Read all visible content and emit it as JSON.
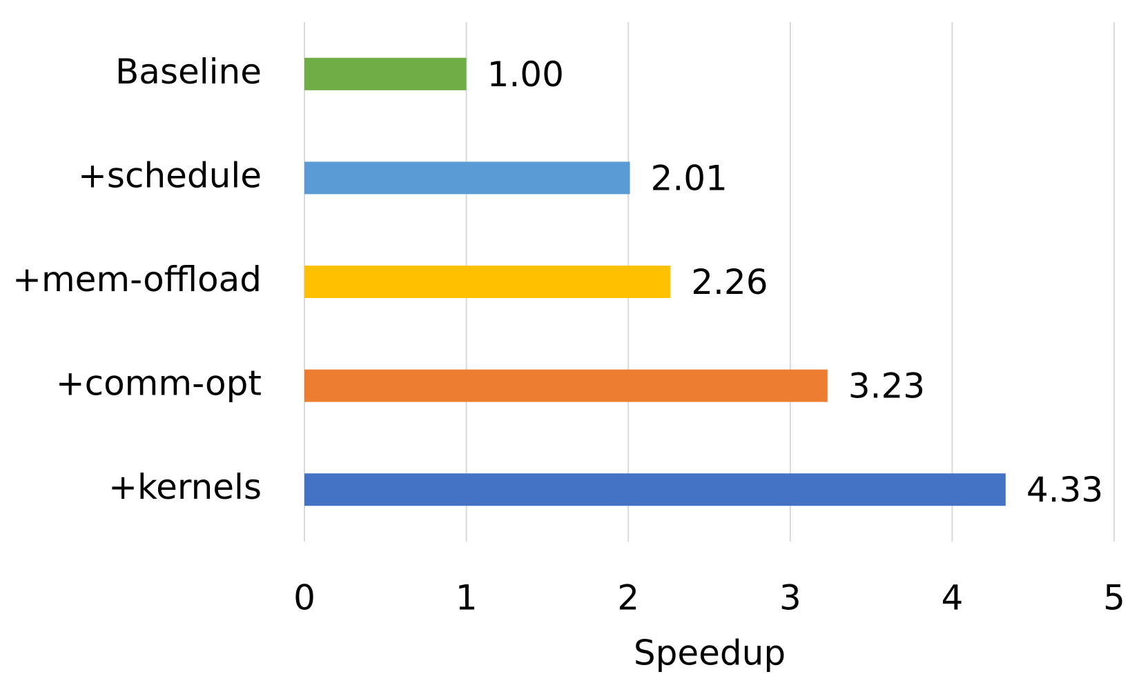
{
  "chart_data": {
    "type": "barh",
    "categories": [
      "Baseline",
      "+schedule",
      "+mem-offload",
      "+comm-opt",
      "+kernels"
    ],
    "values": [
      1.0,
      2.01,
      2.26,
      3.23,
      4.33
    ],
    "value_labels": [
      "1.00",
      "2.01",
      "2.26",
      "3.23",
      "4.33"
    ],
    "colors": [
      "#70ad47",
      "#5b9bd5",
      "#ffc000",
      "#ed7d31",
      "#4472c4"
    ],
    "xlabel": "Speedup",
    "xlim": [
      0,
      5
    ],
    "xticks": [
      0,
      1,
      2,
      3,
      4,
      5
    ],
    "grid": true
  }
}
